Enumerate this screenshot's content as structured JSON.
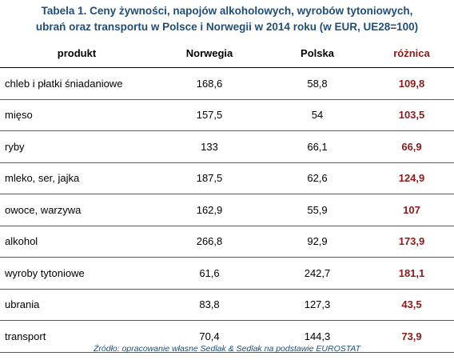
{
  "caption": {
    "line1": "Tabela 1. Ceny żywności, napojów alkoholowych, wyrobów tytoniowych,",
    "line2": "ubrań oraz transportu w Polsce i Norwegii w 2014 roku (w EUR, UE28=100)"
  },
  "table": {
    "headers": [
      "produkt",
      "Norwegia",
      "Polska",
      "różnica"
    ],
    "rows": [
      {
        "produkt": "chleb i płatki śniadaniowe",
        "norwegia": "168,6",
        "polska": "58,8",
        "roznica": "109,8"
      },
      {
        "produkt": "mięso",
        "norwegia": "157,5",
        "polska": "54",
        "roznica": "103,5"
      },
      {
        "produkt": "ryby",
        "norwegia": "133",
        "polska": "66,1",
        "roznica": "66,9"
      },
      {
        "produkt": "mleko, ser, jajka",
        "norwegia": "187,5",
        "polska": "62,6",
        "roznica": "124,9"
      },
      {
        "produkt": "owoce, warzywa",
        "norwegia": "162,9",
        "polska": "55,9",
        "roznica": "107"
      },
      {
        "produkt": "alkohol",
        "norwegia": "266,8",
        "polska": "92,9",
        "roznica": "173,9"
      },
      {
        "produkt": "wyroby tytoniowe",
        "norwegia": "61,6",
        "polska": "242,7",
        "roznica": "181,1"
      },
      {
        "produkt": "ubrania",
        "norwegia": "83,8",
        "polska": "127,3",
        "roznica": "43,5"
      },
      {
        "produkt": "transport",
        "norwegia": "70,4",
        "polska": "144,3",
        "roznica": "73,9"
      }
    ]
  },
  "source": "Źródło: opracowanie własne Sedlak & Sedlak na podstawie EUROSTAT",
  "colors": {
    "caption": "#1f4e79",
    "difference": "#8b1a1a"
  }
}
